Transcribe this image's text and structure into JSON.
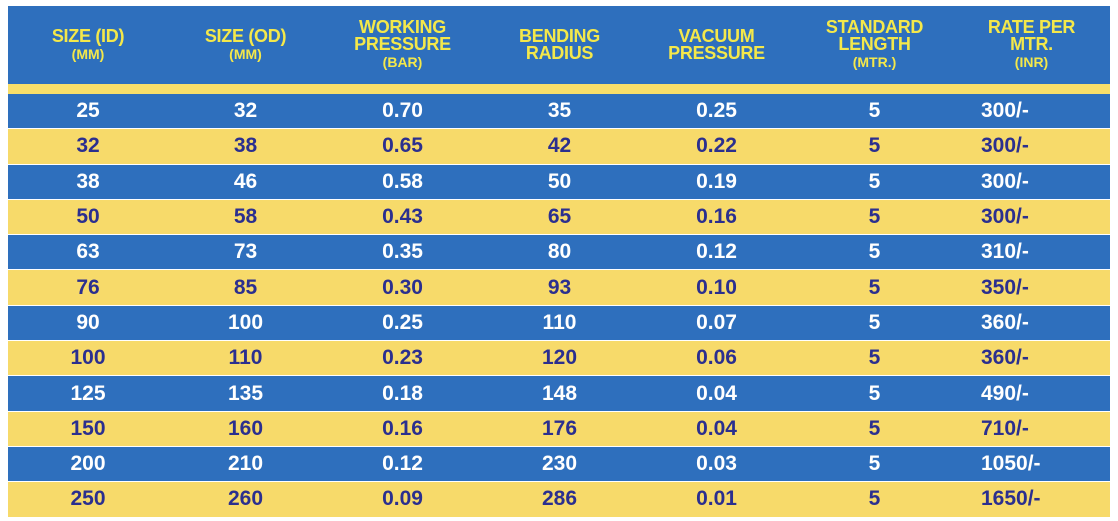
{
  "headers": [
    {
      "main": "SIZE (ID)",
      "unit": "(MM)"
    },
    {
      "main": "SIZE (OD)",
      "unit": "(MM)"
    },
    {
      "main": "WORKING\nPRESSURE",
      "unit": "(BAR)"
    },
    {
      "main": "BENDING\nRADIUS",
      "unit": ""
    },
    {
      "main": "VACUUM\nPRESSURE",
      "unit": ""
    },
    {
      "main": "STANDARD\nLENGTH",
      "unit": "(MTR.)"
    },
    {
      "main": "RATE PER\nMTR.",
      "unit": "(INR)"
    }
  ],
  "rows": [
    [
      "25",
      "32",
      "0.70",
      "35",
      "0.25",
      "5",
      "300/-"
    ],
    [
      "32",
      "38",
      "0.65",
      "42",
      "0.22",
      "5",
      "300/-"
    ],
    [
      "38",
      "46",
      "0.58",
      "50",
      "0.19",
      "5",
      "300/-"
    ],
    [
      "50",
      "58",
      "0.43",
      "65",
      "0.16",
      "5",
      "300/-"
    ],
    [
      "63",
      "73",
      "0.35",
      "80",
      "0.12",
      "5",
      "310/-"
    ],
    [
      "76",
      "85",
      "0.30",
      "93",
      "0.10",
      "5",
      "350/-"
    ],
    [
      "90",
      "100",
      "0.25",
      "110",
      "0.07",
      "5",
      "360/-"
    ],
    [
      "100",
      "110",
      "0.23",
      "120",
      "0.06",
      "5",
      "360/-"
    ],
    [
      "125",
      "135",
      "0.18",
      "148",
      "0.04",
      "5",
      "490/-"
    ],
    [
      "150",
      "160",
      "0.16",
      "176",
      "0.04",
      "5",
      "710/-"
    ],
    [
      "200",
      "210",
      "0.12",
      "230",
      "0.03",
      "5",
      "1050/-"
    ],
    [
      "250",
      "260",
      "0.09",
      "286",
      "0.01",
      "5",
      "1650/-"
    ]
  ],
  "colors": {
    "blue": "#2e6fbd",
    "yellow": "#f7da6a",
    "header_text": "#f4e84a",
    "yellow_row_text": "#2b2f8f",
    "blue_row_text": "#ffffff"
  }
}
